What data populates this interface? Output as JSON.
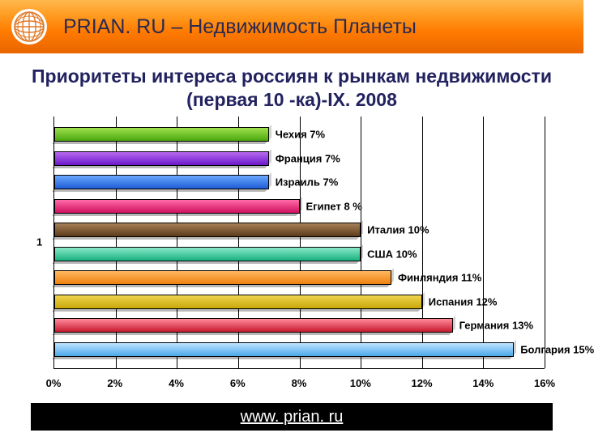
{
  "header": {
    "title": "PRIAN. RU – Недвижимость Планеты",
    "title_color": "#2a2a50",
    "title_fontsize": 25,
    "gradient_top": "#ffb84d",
    "gradient_bottom": "#e86500",
    "globe_bg": "#ffffff",
    "globe_line": "#e07a28"
  },
  "chart": {
    "type": "bar",
    "orientation": "horizontal",
    "title": "Приоритеты интереса россиян к рынкам недвижимости (первая 10 -ка)-IX. 2008",
    "title_color": "#222260",
    "title_fontsize": 23,
    "y_axis_label": "1",
    "x_axis": {
      "min": 0,
      "max": 16,
      "tick_step": 2,
      "ticks": [
        "0%",
        "2%",
        "4%",
        "6%",
        "8%",
        "10%",
        "12%",
        "14%",
        "16%"
      ]
    },
    "background_color": "#ffffff",
    "grid_color": "#000000",
    "bar_border": "#000000",
    "label_fontsize": 13,
    "bars": [
      {
        "label": "Чехия  7%",
        "value": 7,
        "fill": "linear-gradient(to bottom,#9fe04e,#4aa80f)"
      },
      {
        "label": "Франция  7%",
        "value": 7,
        "fill": "linear-gradient(to bottom,#b86af0,#6a18c8)"
      },
      {
        "label": "Израиль 7%",
        "value": 7,
        "fill": "linear-gradient(to bottom,#6aa8ff,#1e5cd6)"
      },
      {
        "label": "Египет 8 %",
        "value": 8,
        "fill": "linear-gradient(to bottom,#ff6aa8,#d01060)"
      },
      {
        "label": "Италия 10%",
        "value": 10,
        "fill": "linear-gradient(to bottom,#a88058,#5c3a1a)"
      },
      {
        "label": "США  10%",
        "value": 10,
        "fill": "linear-gradient(to bottom,#8ae8c8,#18b080)"
      },
      {
        "label": "Финляндия  11%",
        "value": 11,
        "fill": "linear-gradient(to bottom,#ffb860,#f08010)"
      },
      {
        "label": "Испания 12%",
        "value": 12,
        "fill": "linear-gradient(to bottom,#f0d44e,#c8a80a)"
      },
      {
        "label": "Германия 13%",
        "value": 13,
        "fill": "linear-gradient(to bottom,#ff8a9a,#c81a30)"
      },
      {
        "label": "Болгария  15%",
        "value": 15,
        "fill": "linear-gradient(to bottom,#bfe4ff,#4aa8e8)"
      }
    ]
  },
  "footer": {
    "text": "www. prian. ru",
    "background": "#000000",
    "text_color": "#ffffff",
    "text_fontsize": 20
  }
}
